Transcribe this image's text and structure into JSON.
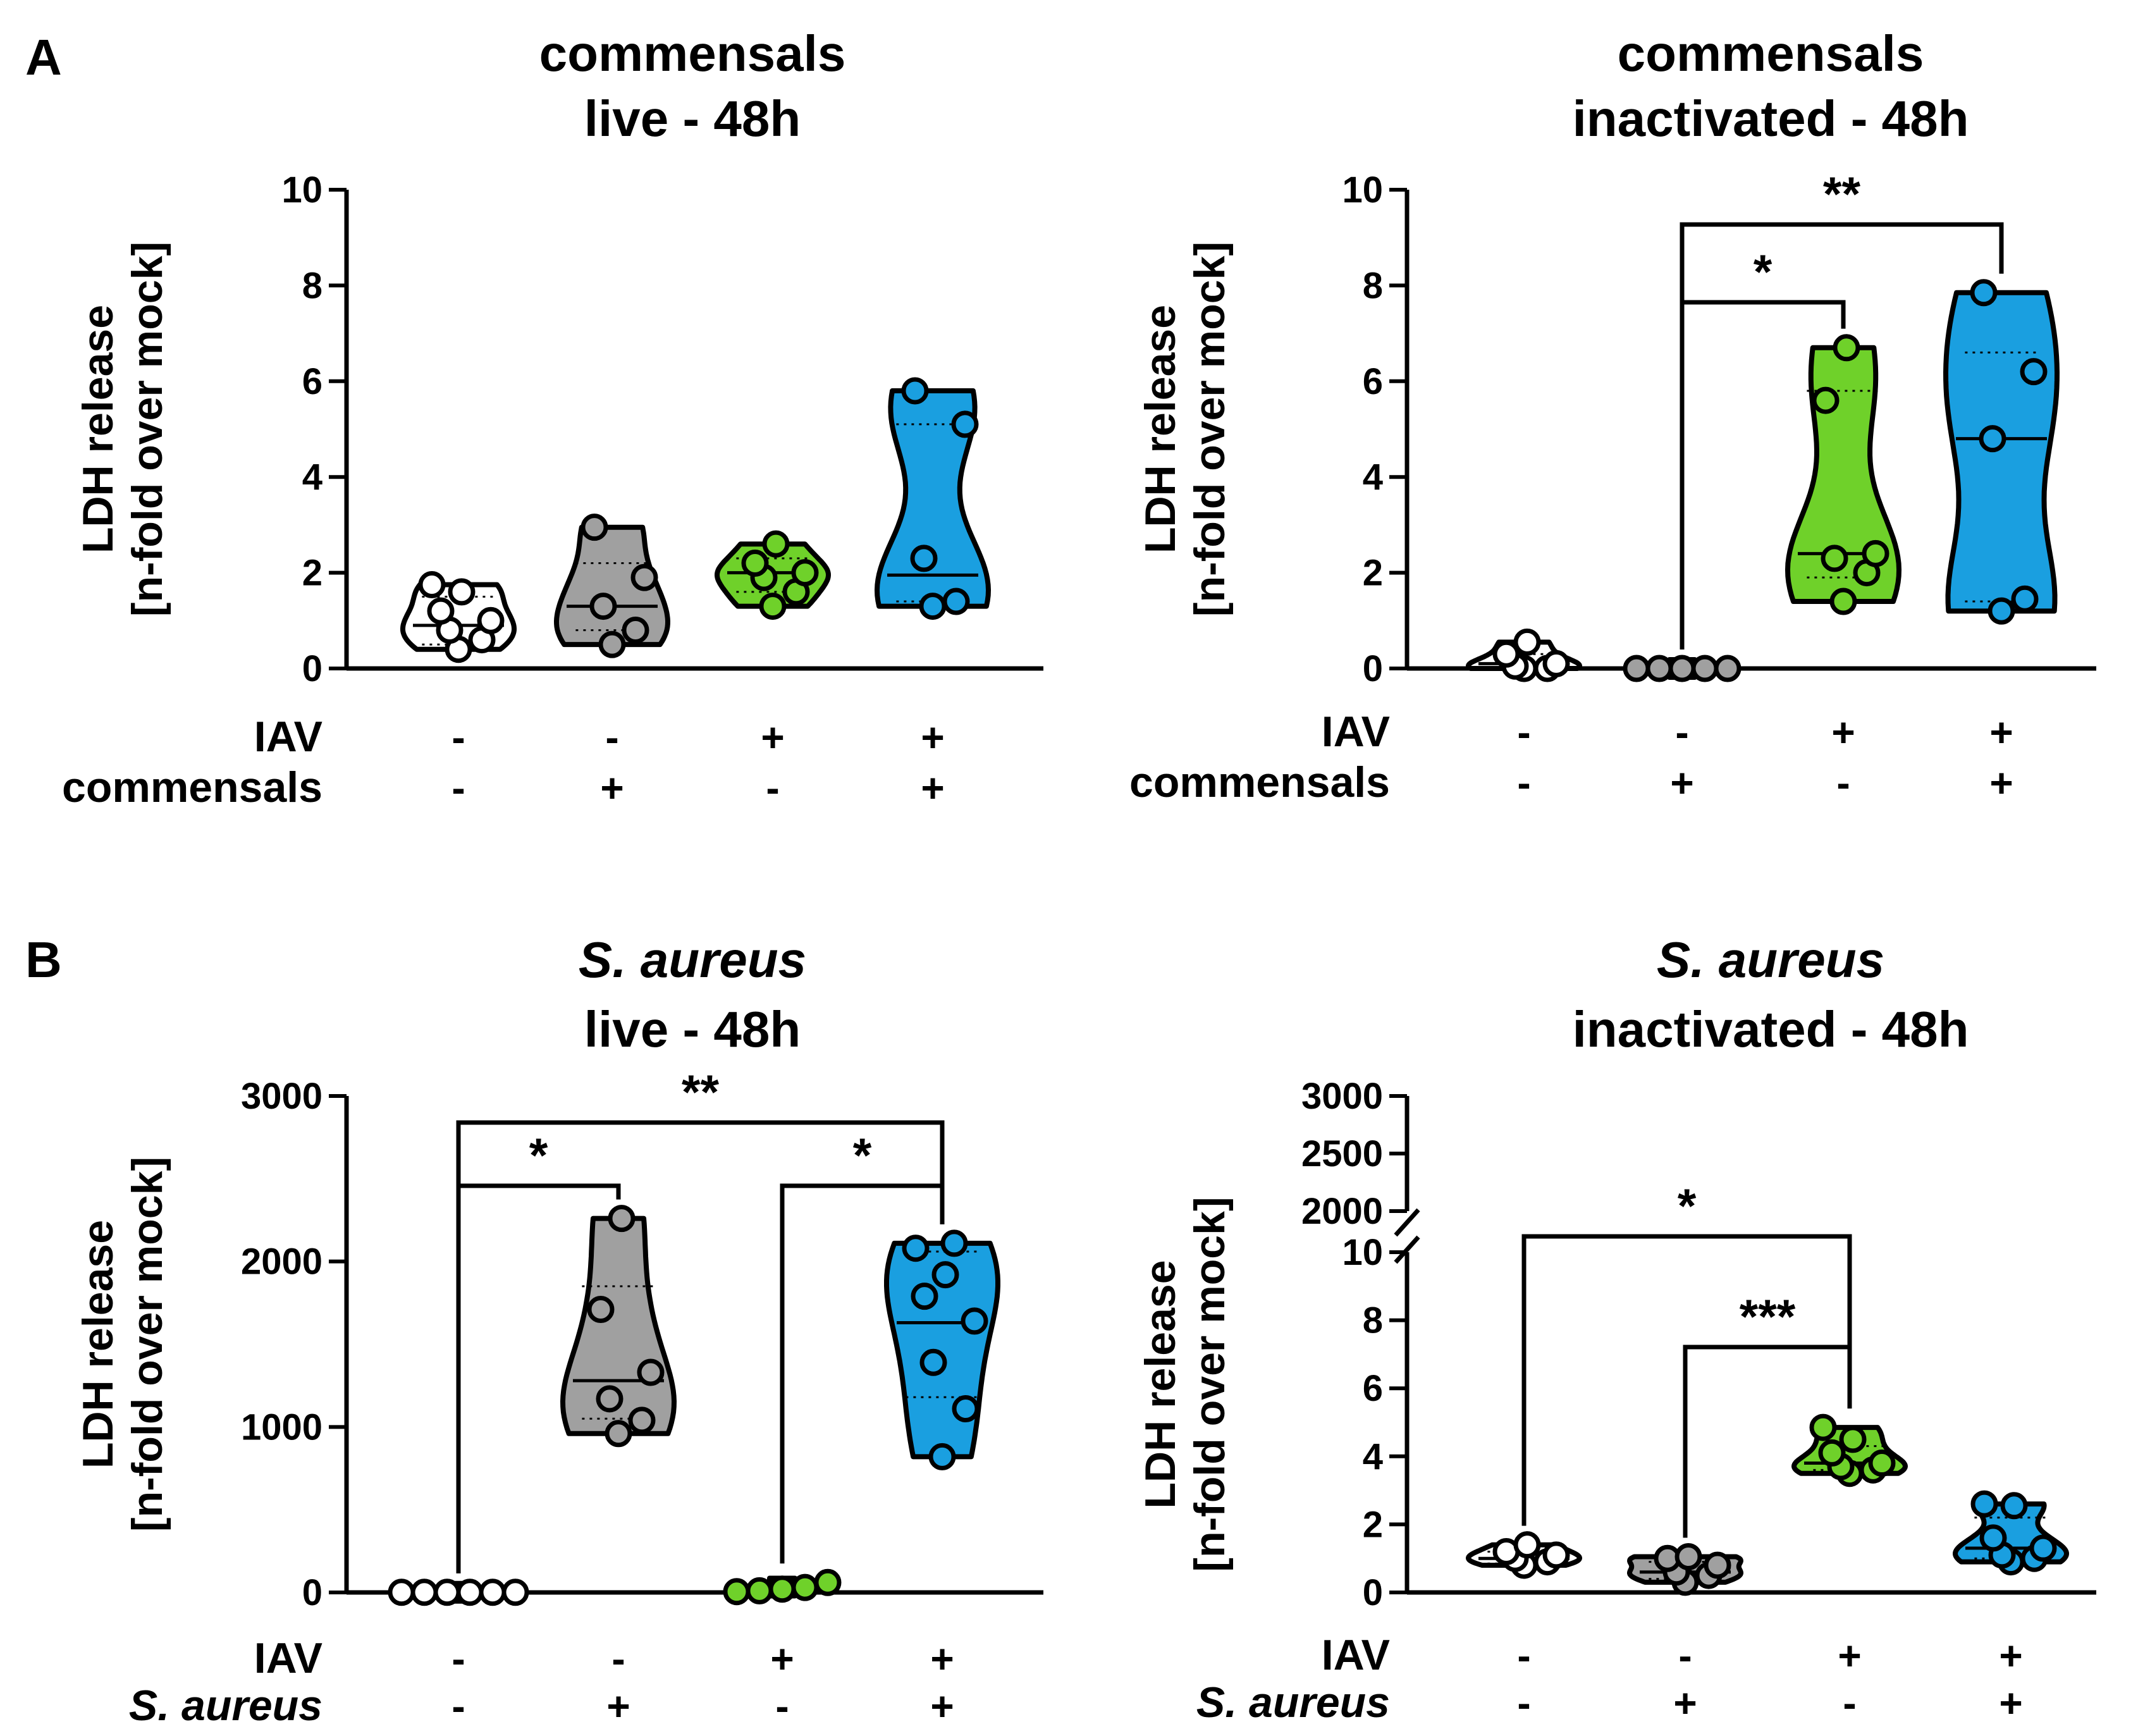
{
  "panel_letters": [
    "A",
    "B"
  ],
  "colors": {
    "none": "#ffffff",
    "bact": "#a0a0a0",
    "iav": "#6fd12a",
    "both": "#1a9fe0"
  },
  "chart_data": [
    {
      "type": "violin",
      "panel": "A",
      "title_lines": [
        "commensals",
        "live - 48h"
      ],
      "title_italic_first": false,
      "ylabel_lines": [
        "LDH release",
        "[n-fold over mock]"
      ],
      "ylim": [
        0,
        10
      ],
      "yticks": [
        "0",
        "2",
        "4",
        "6",
        "8",
        "10"
      ],
      "row_labels": [
        "IAV",
        "commensals"
      ],
      "row_label_italic": [
        false,
        false
      ],
      "groups": [
        {
          "iav": "-",
          "bact": "-",
          "color": "none",
          "values": [
            0.4,
            0.6,
            0.8,
            1.0,
            1.2,
            1.6,
            1.75
          ],
          "median": 0.9,
          "q1": 0.5,
          "q3": 1.5
        },
        {
          "iav": "-",
          "bact": "+",
          "color": "bact",
          "values": [
            0.5,
            0.8,
            1.3,
            1.9,
            2.95
          ],
          "median": 1.3,
          "q1": 0.8,
          "q3": 2.2
        },
        {
          "iav": "+",
          "bact": "-",
          "color": "iav",
          "values": [
            1.3,
            1.6,
            1.9,
            2.2,
            2.6,
            2.0
          ],
          "median": 2.0,
          "q1": 1.6,
          "q3": 2.3
        },
        {
          "iav": "+",
          "bact": "+",
          "color": "both",
          "values": [
            1.3,
            1.4,
            2.3,
            5.1,
            5.8
          ],
          "median": 1.95,
          "q1": 1.4,
          "q3": 5.1
        }
      ],
      "significance": []
    },
    {
      "type": "violin",
      "panel": "A",
      "title_lines": [
        "commensals",
        "inactivated - 48h"
      ],
      "title_italic_first": false,
      "ylabel_lines": [
        "LDH release",
        "[n-fold over mock]"
      ],
      "ylim": [
        0,
        10
      ],
      "yticks": [
        "0",
        "2",
        "4",
        "6",
        "8",
        "10"
      ],
      "row_labels": [
        "IAV",
        "commensals"
      ],
      "row_label_italic": [
        false,
        false
      ],
      "groups": [
        {
          "iav": "-",
          "bact": "-",
          "color": "none",
          "values": [
            0.0,
            0.05,
            0.1,
            0.3,
            0.55,
            0.0
          ],
          "median": 0.1,
          "q1": 0.0,
          "q3": 0.3
        },
        {
          "iav": "-",
          "bact": "+",
          "color": "bact",
          "values": [
            0.0,
            0.0,
            0.0,
            0.0,
            0.0
          ],
          "median": 0.0,
          "q1": 0.0,
          "q3": 0.0
        },
        {
          "iav": "+",
          "bact": "-",
          "color": "iav",
          "values": [
            1.4,
            2.0,
            2.3,
            2.4,
            5.6,
            6.7
          ],
          "median": 2.4,
          "q1": 1.9,
          "q3": 5.8
        },
        {
          "iav": "+",
          "bact": "+",
          "color": "both",
          "values": [
            1.2,
            1.45,
            4.8,
            6.2,
            7.85
          ],
          "median": 4.8,
          "q1": 1.4,
          "q3": 6.6
        }
      ],
      "significance": [
        {
          "from": 1,
          "to": 2,
          "level": 0,
          "label": "*"
        },
        {
          "from": 1,
          "to": 3,
          "level": 1,
          "label": "**"
        }
      ]
    },
    {
      "type": "violin",
      "panel": "B",
      "title_lines": [
        "S. aureus",
        "live - 48h"
      ],
      "title_italic_first": true,
      "ylabel_lines": [
        "LDH release",
        "[n-fold over mock]"
      ],
      "ylim": [
        0,
        3000
      ],
      "yticks": [
        "0",
        "1000",
        "2000",
        "3000"
      ],
      "row_labels": [
        "IAV",
        "S. aureus"
      ],
      "row_label_italic": [
        false,
        true
      ],
      "groups": [
        {
          "iav": "-",
          "bact": "-",
          "color": "none",
          "values": [
            1,
            1,
            1,
            1,
            1,
            1
          ],
          "median": 1,
          "q1": 1,
          "q3": 1
        },
        {
          "iav": "-",
          "bact": "+",
          "color": "bact",
          "values": [
            960,
            1040,
            1170,
            1330,
            1710,
            2260
          ],
          "median": 1280,
          "q1": 1050,
          "q3": 1850
        },
        {
          "iav": "+",
          "bact": "-",
          "color": "iav",
          "values": [
            5,
            10,
            20,
            30,
            60
          ],
          "median": 20,
          "q1": 5,
          "q3": 40
        },
        {
          "iav": "+",
          "bact": "+",
          "color": "both",
          "values": [
            820,
            1110,
            1390,
            1640,
            1790,
            1920,
            2080,
            2110
          ],
          "median": 1630,
          "q1": 1180,
          "q3": 2060
        }
      ],
      "significance": [
        {
          "from": 0,
          "to": 1,
          "level": 0,
          "label": "*"
        },
        {
          "from": 2,
          "to": 3,
          "level": 0,
          "label": "*"
        },
        {
          "from": 0,
          "to": 3,
          "level": 1,
          "label": "**"
        }
      ]
    },
    {
      "type": "violin",
      "panel": "B",
      "title_lines": [
        "S. aureus",
        "inactivated - 48h"
      ],
      "title_italic_first": true,
      "ylabel_lines": [
        "LDH release",
        "[n-fold over mock]"
      ],
      "ylim": [
        0,
        10
      ],
      "upper_ylim": [
        2000,
        3000
      ],
      "yticks": [
        "0",
        "2",
        "4",
        "6",
        "8",
        "10"
      ],
      "upper_yticks": [
        "2000",
        "2500",
        "3000"
      ],
      "axis_break": true,
      "row_labels": [
        "IAV",
        "S. aureus"
      ],
      "row_label_italic": [
        false,
        true
      ],
      "groups": [
        {
          "iav": "-",
          "bact": "-",
          "color": "none",
          "values": [
            0.8,
            0.9,
            1.0,
            1.1,
            1.2,
            1.4
          ],
          "median": 1.0,
          "q1": 0.85,
          "q3": 1.2
        },
        {
          "iav": "-",
          "bact": "+",
          "color": "bact",
          "values": [
            0.3,
            0.5,
            0.6,
            0.8,
            1.0,
            1.05
          ],
          "median": 0.6,
          "q1": 0.4,
          "q3": 0.9
        },
        {
          "iav": "+",
          "bact": "-",
          "color": "iav",
          "values": [
            3.5,
            3.6,
            3.7,
            3.8,
            4.1,
            4.5,
            4.85
          ],
          "median": 3.8,
          "q1": 3.6,
          "q3": 4.3
        },
        {
          "iav": "+",
          "bact": "+",
          "color": "both",
          "values": [
            0.9,
            1.0,
            1.1,
            1.3,
            1.6,
            2.55,
            2.6
          ],
          "median": 1.3,
          "q1": 1.0,
          "q3": 2.2
        }
      ],
      "significance": [
        {
          "from": 1,
          "to": 2,
          "level": 0,
          "label": "***"
        },
        {
          "from": 0,
          "to": 2,
          "level": 1,
          "label": "*"
        }
      ]
    }
  ]
}
